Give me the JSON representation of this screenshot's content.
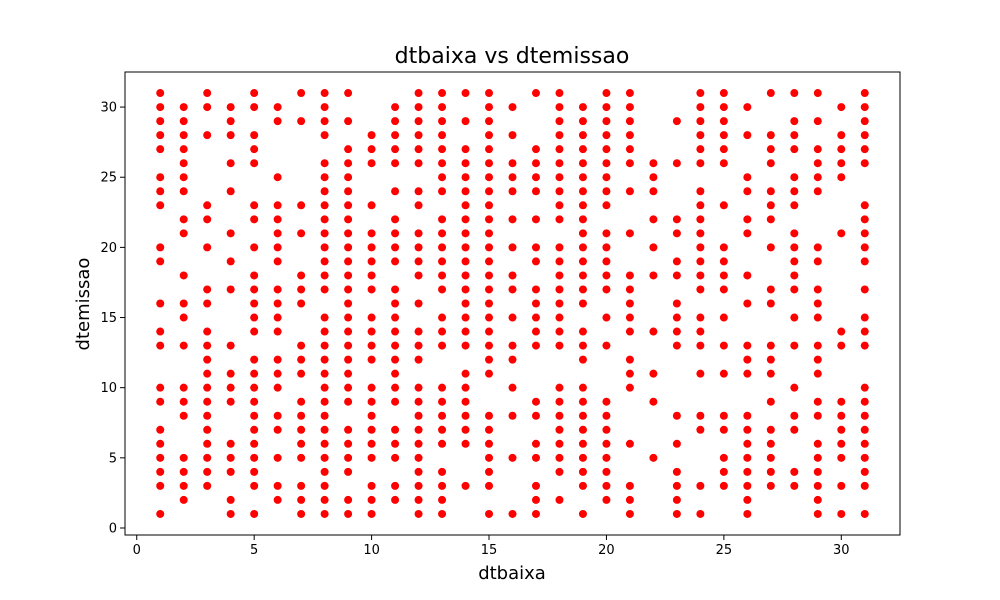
{
  "chart_data": {
    "type": "scatter",
    "title": "dtbaixa vs dtemissao",
    "xlabel": "dtbaixa",
    "ylabel": "dtemissao",
    "xlim": [
      -0.5,
      32.5
    ],
    "ylim": [
      -0.5,
      32.5
    ],
    "xticks": [
      0,
      5,
      10,
      15,
      20,
      25,
      30
    ],
    "yticks": [
      0,
      5,
      10,
      15,
      20,
      25,
      30
    ],
    "grid": false,
    "marker_color": "#ff0000",
    "points_by_x": {
      "1": [
        1,
        3,
        4,
        5,
        6,
        7,
        9,
        10,
        13,
        14,
        16,
        19,
        20,
        23,
        24,
        25,
        27,
        28,
        29,
        30,
        31
      ],
      "2": [
        2,
        3,
        4,
        5,
        8,
        9,
        10,
        13,
        15,
        16,
        18,
        21,
        22,
        24,
        25,
        26,
        27,
        28,
        29,
        30
      ],
      "3": [
        3,
        4,
        5,
        6,
        7,
        8,
        9,
        10,
        11,
        12,
        13,
        14,
        16,
        17,
        20,
        22,
        23,
        28,
        30,
        31
      ],
      "4": [
        1,
        2,
        4,
        5,
        6,
        9,
        10,
        11,
        13,
        17,
        19,
        21,
        24,
        26,
        28,
        29,
        30
      ],
      "5": [
        1,
        3,
        4,
        5,
        6,
        7,
        8,
        9,
        10,
        11,
        12,
        14,
        15,
        16,
        17,
        18,
        20,
        22,
        23,
        26,
        27,
        28,
        30,
        31
      ],
      "6": [
        2,
        3,
        5,
        7,
        8,
        10,
        11,
        12,
        14,
        15,
        16,
        17,
        19,
        20,
        21,
        22,
        23,
        25,
        29,
        30
      ],
      "7": [
        1,
        2,
        3,
        5,
        6,
        7,
        8,
        9,
        11,
        12,
        13,
        16,
        17,
        18,
        21,
        23,
        29,
        31
      ],
      "8": [
        1,
        2,
        3,
        4,
        5,
        6,
        7,
        8,
        9,
        10,
        11,
        12,
        13,
        14,
        15,
        17,
        18,
        19,
        20,
        21,
        22,
        23,
        24,
        25,
        26,
        28,
        29,
        30,
        31
      ],
      "9": [
        1,
        2,
        4,
        5,
        6,
        7,
        9,
        10,
        11,
        12,
        13,
        14,
        15,
        16,
        17,
        18,
        19,
        20,
        21,
        22,
        23,
        24,
        25,
        26,
        27,
        29,
        31
      ],
      "10": [
        1,
        2,
        3,
        5,
        6,
        7,
        8,
        9,
        10,
        12,
        13,
        14,
        15,
        17,
        18,
        19,
        20,
        21,
        23,
        26,
        27,
        28
      ],
      "11": [
        2,
        3,
        5,
        6,
        7,
        9,
        10,
        11,
        12,
        13,
        14,
        15,
        16,
        17,
        19,
        20,
        21,
        22,
        24,
        26,
        27,
        28,
        29,
        30
      ],
      "12": [
        1,
        2,
        3,
        4,
        5,
        6,
        7,
        8,
        9,
        10,
        12,
        13,
        14,
        16,
        18,
        19,
        20,
        21,
        23,
        24,
        26,
        27,
        28,
        29,
        30,
        31
      ],
      "13": [
        1,
        2,
        3,
        4,
        6,
        7,
        8,
        9,
        10,
        13,
        14,
        15,
        17,
        18,
        19,
        20,
        21,
        22,
        24,
        25,
        26,
        27,
        28,
        29,
        30,
        31
      ],
      "14": [
        3,
        6,
        7,
        8,
        9,
        10,
        11,
        13,
        14,
        15,
        16,
        17,
        18,
        19,
        20,
        21,
        22,
        23,
        24,
        25,
        26,
        27,
        29,
        31
      ],
      "15": [
        1,
        3,
        4,
        5,
        6,
        7,
        8,
        11,
        12,
        13,
        14,
        15,
        16,
        17,
        18,
        19,
        20,
        21,
        22,
        23,
        24,
        25,
        26,
        27,
        28,
        29,
        30,
        31
      ],
      "16": [
        1,
        5,
        8,
        10,
        12,
        13,
        15,
        17,
        18,
        20,
        22,
        24,
        25,
        26,
        28,
        30
      ],
      "17": [
        1,
        2,
        3,
        5,
        6,
        8,
        9,
        13,
        14,
        15,
        16,
        17,
        19,
        20,
        22,
        24,
        25,
        26,
        27,
        31
      ],
      "18": [
        2,
        4,
        5,
        6,
        7,
        8,
        9,
        10,
        13,
        14,
        15,
        16,
        17,
        18,
        19,
        20,
        22,
        23,
        24,
        25,
        26,
        27,
        28,
        29,
        30,
        31
      ],
      "19": [
        1,
        3,
        4,
        5,
        6,
        7,
        8,
        9,
        10,
        12,
        13,
        14,
        16,
        17,
        18,
        19,
        20,
        21,
        22,
        23,
        24,
        25,
        26,
        27,
        28,
        29,
        30
      ],
      "20": [
        2,
        3,
        4,
        5,
        6,
        7,
        8,
        9,
        13,
        15,
        17,
        18,
        19,
        20,
        21,
        23,
        24,
        25,
        26,
        27,
        28,
        29,
        30,
        31
      ],
      "21": [
        1,
        2,
        3,
        6,
        10,
        11,
        12,
        14,
        15,
        16,
        17,
        18,
        21,
        24,
        26,
        27,
        28,
        29,
        30,
        31
      ],
      "22": [
        5,
        9,
        11,
        14,
        18,
        20,
        22,
        24,
        25,
        26
      ],
      "23": [
        1,
        2,
        3,
        4,
        6,
        8,
        13,
        14,
        15,
        16,
        18,
        19,
        21,
        22,
        26,
        29
      ],
      "24": [
        1,
        3,
        7,
        8,
        11,
        13,
        14,
        15,
        17,
        18,
        19,
        20,
        21,
        22,
        23,
        24,
        26,
        27,
        28,
        29,
        30,
        31
      ],
      "25": [
        3,
        4,
        5,
        7,
        8,
        11,
        13,
        15,
        17,
        18,
        19,
        20,
        23,
        26,
        27,
        28,
        29,
        30,
        31
      ],
      "26": [
        1,
        2,
        3,
        4,
        5,
        6,
        7,
        8,
        11,
        12,
        13,
        16,
        18,
        21,
        22,
        24,
        25,
        28,
        30
      ],
      "27": [
        3,
        4,
        5,
        6,
        7,
        9,
        11,
        12,
        13,
        16,
        17,
        20,
        22,
        23,
        24,
        26,
        27,
        28,
        31
      ],
      "28": [
        3,
        4,
        7,
        8,
        10,
        13,
        15,
        17,
        18,
        19,
        20,
        21,
        23,
        24,
        25,
        27,
        28,
        29,
        31
      ],
      "29": [
        1,
        2,
        3,
        4,
        5,
        6,
        8,
        9,
        11,
        12,
        13,
        15,
        16,
        17,
        19,
        20,
        24,
        25,
        26,
        27,
        29,
        31
      ],
      "30": [
        1,
        3,
        5,
        6,
        7,
        8,
        9,
        13,
        14,
        21,
        25,
        26,
        27,
        28,
        30
      ],
      "31": [
        1,
        3,
        4,
        5,
        6,
        7,
        8,
        9,
        10,
        13,
        14,
        15,
        17,
        19,
        20,
        21,
        22,
        23,
        26,
        27,
        28,
        29,
        30,
        31
      ]
    }
  }
}
